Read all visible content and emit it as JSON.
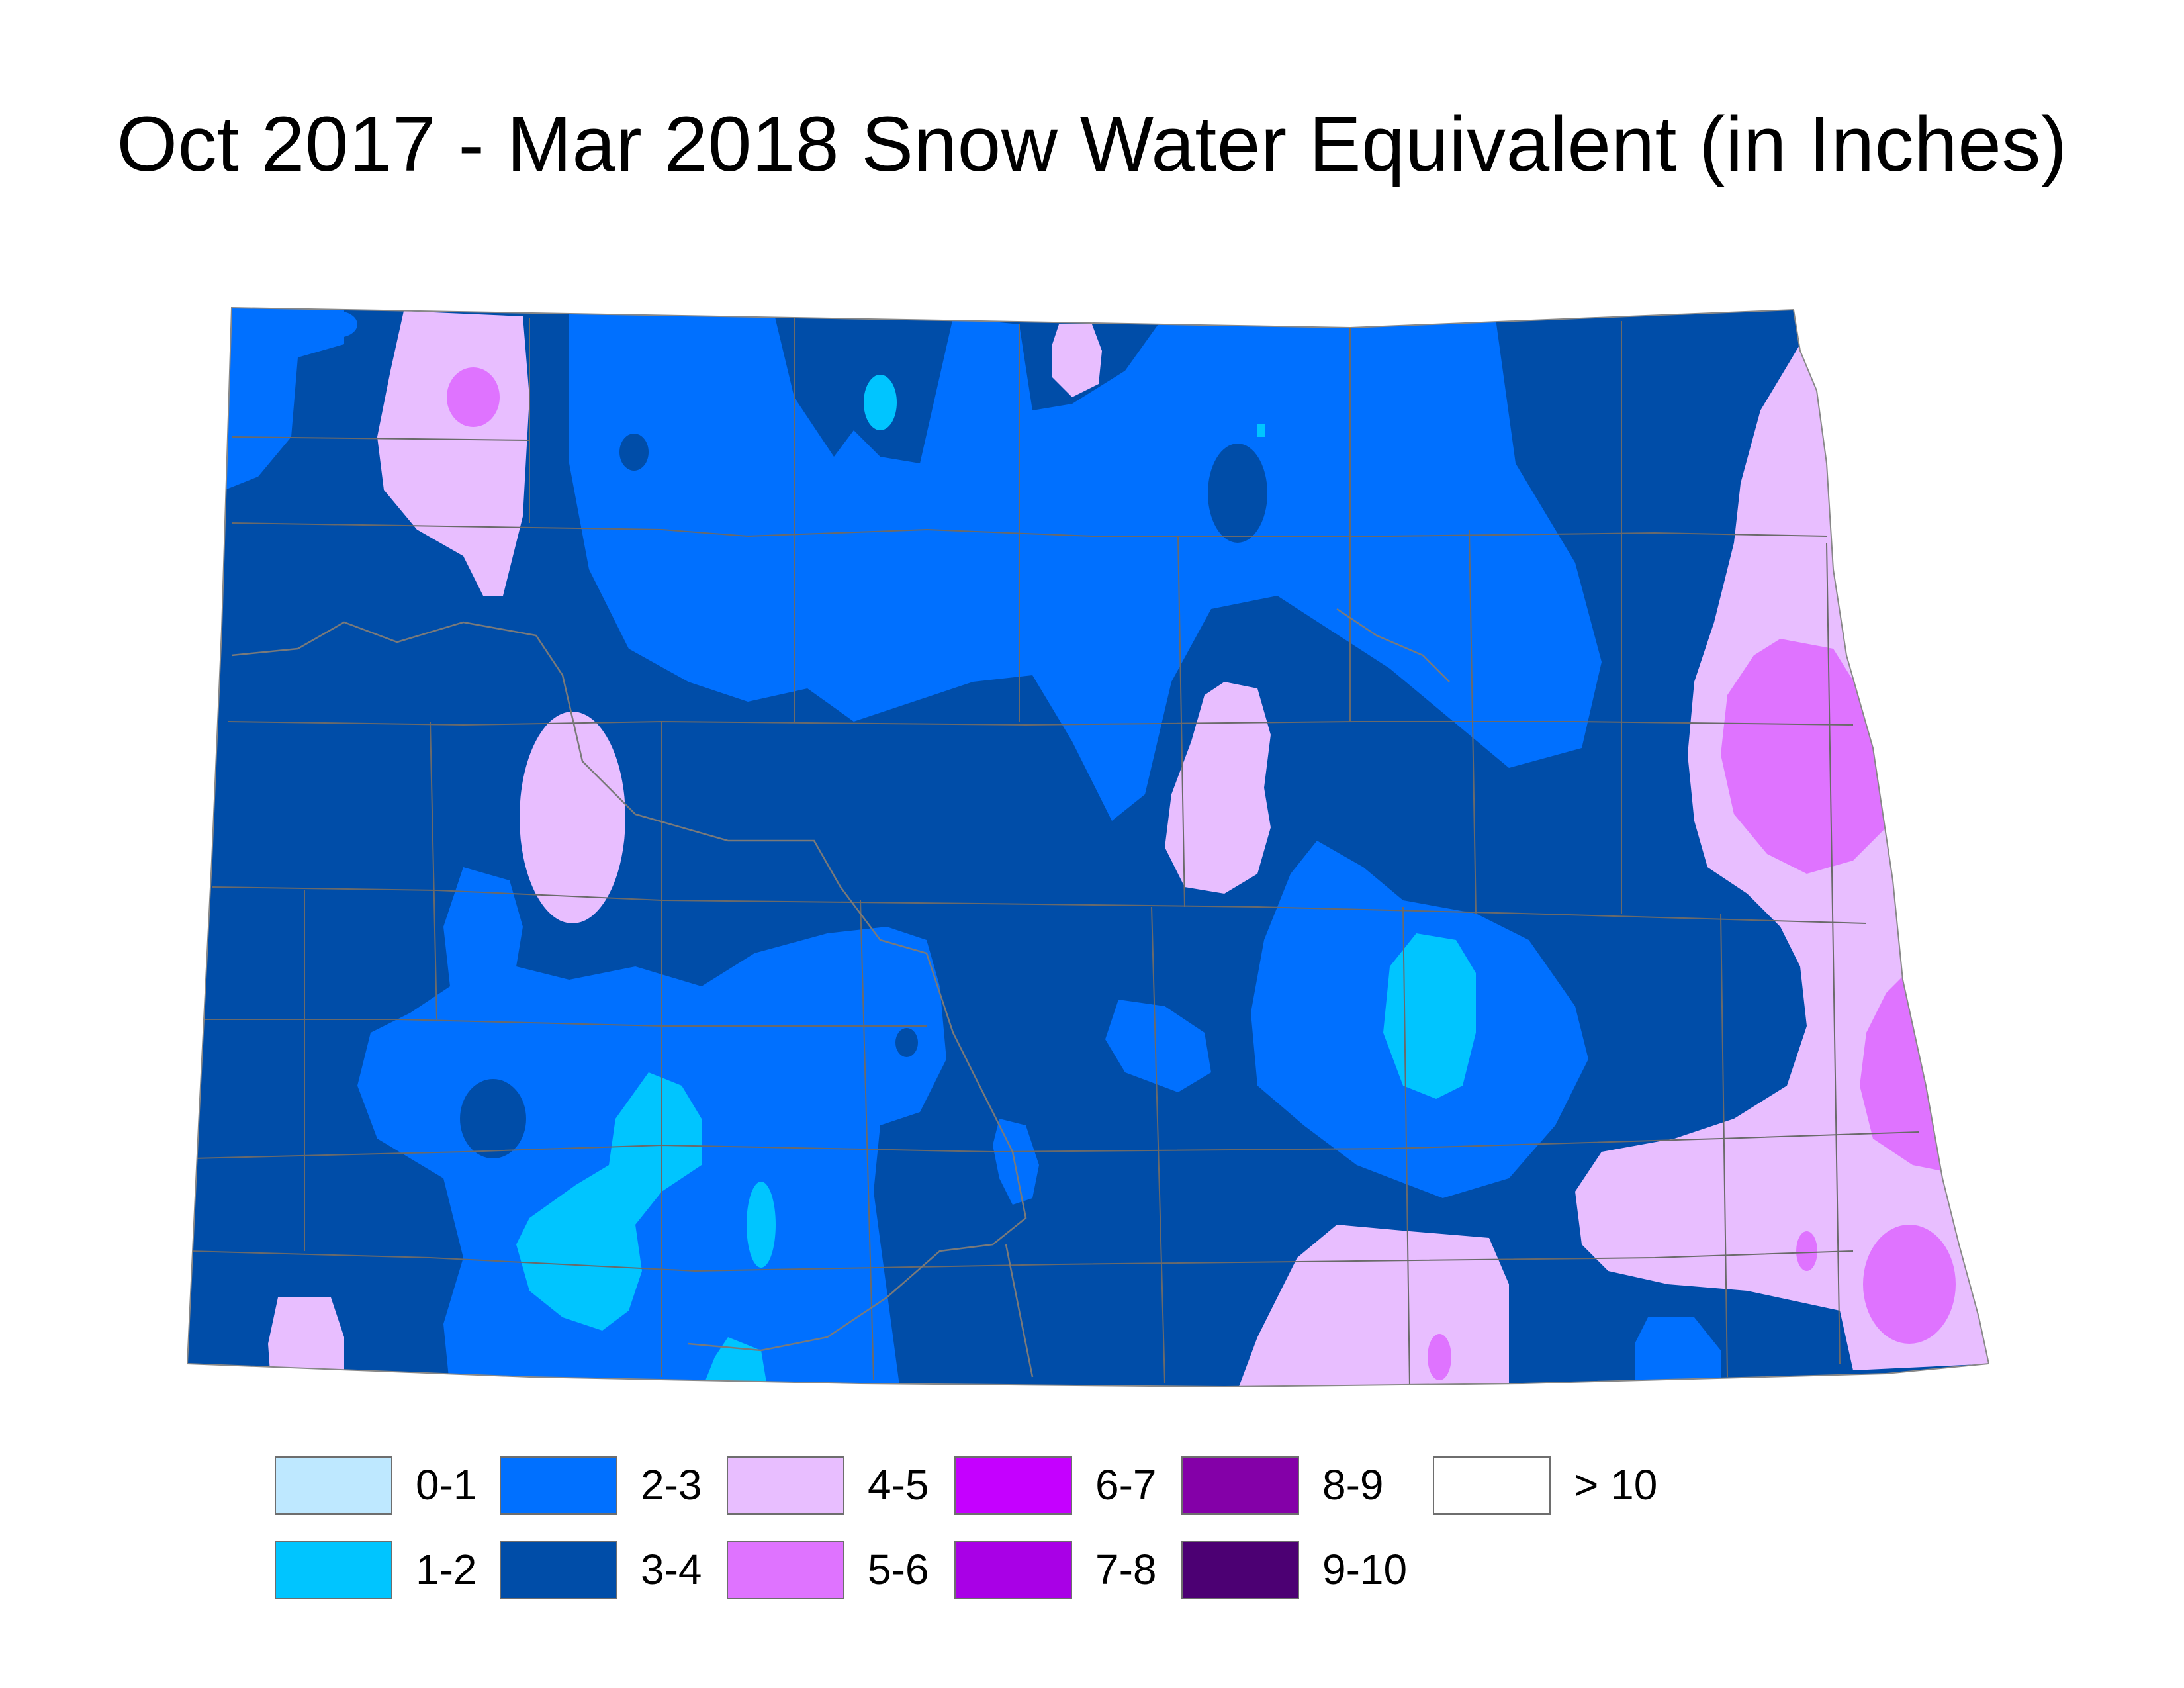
{
  "title": "Oct 2017 - Mar 2018 Snow Water Equivalent (in Inches)",
  "legend": [
    {
      "label": "0-1",
      "color": "#bee8ff"
    },
    {
      "label": "1-2",
      "color": "#00c5ff"
    },
    {
      "label": "2-3",
      "color": "#0070ff"
    },
    {
      "label": "3-4",
      "color": "#004da8"
    },
    {
      "label": "4-5",
      "color": "#e8beff"
    },
    {
      "label": "5-6",
      "color": "#df73ff"
    },
    {
      "label": "6-7",
      "color": "#c500ff"
    },
    {
      "label": "7-8",
      "color": "#a900e6"
    },
    {
      "label": "8-9",
      "color": "#8400a8"
    },
    {
      "label": "9-10",
      "color": "#4c0073"
    },
    {
      "label": "> 10",
      "color": "#ffffff"
    }
  ]
}
